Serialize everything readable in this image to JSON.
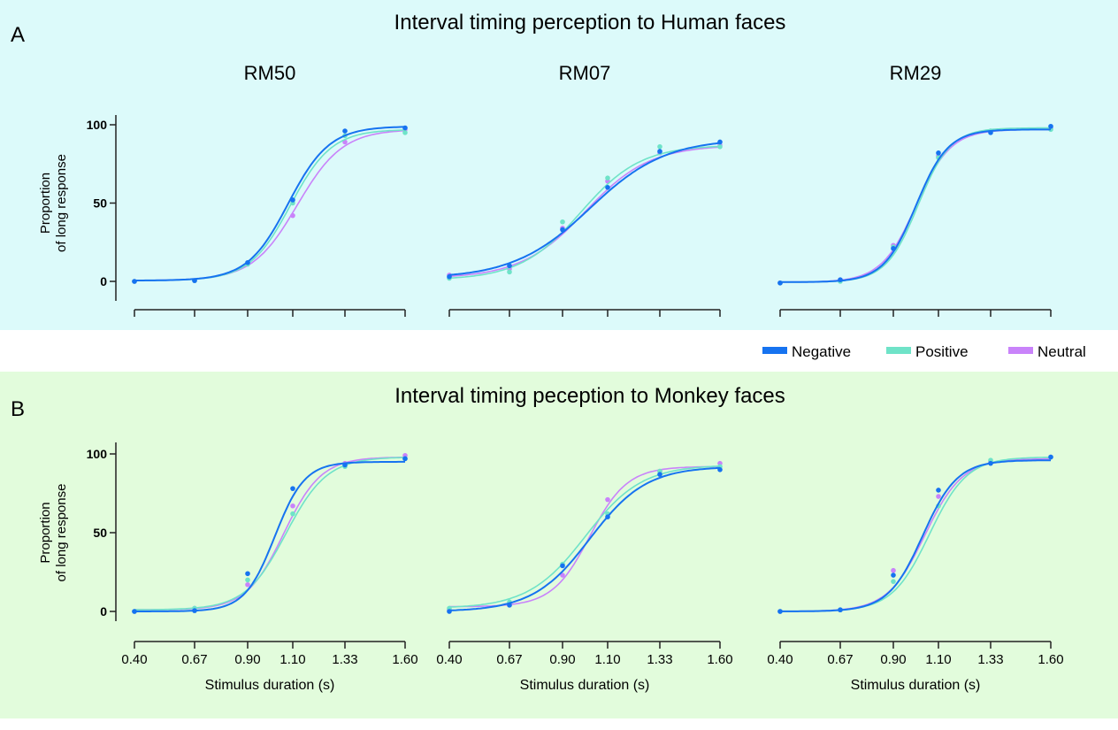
{
  "colors": {
    "Negative": "#1673f0",
    "Positive": "#6fe3c8",
    "Neutral": "#c983fa",
    "bg_top": "#dcfafa",
    "bg_bottom": "#e2fcdc"
  },
  "legend": [
    "Negative",
    "Positive",
    "Neutral"
  ],
  "chart_data": [
    {
      "type": "line",
      "row": "A",
      "title": "Interval timing perception to Human faces",
      "panel": "RM50",
      "ylabel": [
        "Proportion",
        "of long response"
      ],
      "xlabel": "",
      "x": [
        0.4,
        0.67,
        0.9,
        1.1,
        1.33,
        1.6
      ],
      "ylim": [
        0,
        100
      ],
      "yticks": [
        "0",
        "50",
        "100"
      ],
      "series": [
        {
          "name": "Negative",
          "values": [
            0,
            0.5,
            12,
            52,
            96,
            98
          ],
          "fit": [
            0.5,
            99,
            1.08,
            11
          ]
        },
        {
          "name": "Positive",
          "values": [
            0,
            0.5,
            11,
            50,
            93,
            95
          ],
          "fit": [
            0.5,
            97,
            1.09,
            11
          ]
        },
        {
          "name": "Neutral",
          "values": [
            0,
            0.5,
            11,
            42,
            89,
            97
          ],
          "fit": [
            0.5,
            97,
            1.12,
            10
          ]
        }
      ]
    },
    {
      "type": "line",
      "row": "A",
      "panel": "RM07",
      "x": [
        0.4,
        0.67,
        0.9,
        1.1,
        1.33,
        1.6
      ],
      "ylim": [
        0,
        100
      ],
      "series": [
        {
          "name": "Negative",
          "values": [
            3,
            10,
            33,
            60,
            83,
            89
          ],
          "fit": [
            2,
            91,
            1.02,
            6
          ]
        },
        {
          "name": "Positive",
          "values": [
            2,
            6,
            38,
            66,
            86,
            86
          ],
          "fit": [
            1,
            87,
            0.98,
            7.5
          ]
        },
        {
          "name": "Neutral",
          "values": [
            4,
            8,
            34,
            64,
            82,
            87
          ],
          "fit": [
            2,
            87,
            1.0,
            7
          ]
        }
      ]
    },
    {
      "type": "line",
      "row": "A",
      "panel": "RM29",
      "x": [
        0.4,
        0.67,
        0.9,
        1.1,
        1.33,
        1.6
      ],
      "ylim": [
        0,
        100
      ],
      "series": [
        {
          "name": "Negative",
          "values": [
            -1,
            1,
            21,
            82,
            95,
            99
          ],
          "fit": [
            -0.5,
            97,
            1.0,
            14
          ]
        },
        {
          "name": "Positive",
          "values": [
            -1,
            0,
            22,
            79,
            96,
            97
          ],
          "fit": [
            -0.5,
            98,
            1.01,
            14
          ]
        },
        {
          "name": "Neutral",
          "values": [
            -1,
            1,
            23,
            80,
            96,
            98
          ],
          "fit": [
            -0.5,
            97,
            1.0,
            13
          ]
        }
      ]
    },
    {
      "type": "line",
      "row": "B",
      "title": "Interval timing peception to Monkey faces",
      "panel": "",
      "ylabel": [
        "Proportion",
        "of long response"
      ],
      "xlabel": "Stimulus duration (s)",
      "xticks": [
        "0.40",
        "0.67",
        "0.90",
        "1.10",
        "1.33",
        "1.60"
      ],
      "x": [
        0.4,
        0.67,
        0.9,
        1.1,
        1.33,
        1.6
      ],
      "ylim": [
        0,
        100
      ],
      "yticks": [
        "0",
        "50",
        "100"
      ],
      "series": [
        {
          "name": "Negative",
          "values": [
            0,
            0.5,
            24,
            78,
            93,
            97
          ],
          "fit": [
            0,
            95,
            1.02,
            15
          ]
        },
        {
          "name": "Positive",
          "values": [
            0,
            2,
            20,
            62,
            92,
            97
          ],
          "fit": [
            1,
            98,
            1.07,
            11
          ]
        },
        {
          "name": "Neutral",
          "values": [
            0,
            2,
            17,
            67,
            94,
            99
          ],
          "fit": [
            1,
            98,
            1.06,
            12
          ]
        }
      ]
    },
    {
      "type": "line",
      "row": "B",
      "panel": "",
      "xlabel": "Stimulus duration (s)",
      "xticks": [
        "0.40",
        "0.67",
        "0.90",
        "1.10",
        "1.33",
        "1.60"
      ],
      "x": [
        0.4,
        0.67,
        0.9,
        1.1,
        1.33,
        1.6
      ],
      "ylim": [
        0,
        100
      ],
      "series": [
        {
          "name": "Negative",
          "values": [
            0,
            4,
            29,
            60,
            87,
            90
          ],
          "fit": [
            0,
            92,
            1.02,
            8
          ]
        },
        {
          "name": "Positive",
          "values": [
            2,
            6,
            30,
            62,
            89,
            92
          ],
          "fit": [
            2,
            93,
            1.0,
            8
          ]
        },
        {
          "name": "Neutral",
          "values": [
            1,
            4,
            23,
            71,
            89,
            94
          ],
          "fit": [
            3,
            92,
            1.02,
            12
          ]
        }
      ]
    },
    {
      "type": "line",
      "row": "B",
      "panel": "",
      "xlabel": "Stimulus duration (s)",
      "xticks": [
        "0.40",
        "0.67",
        "0.90",
        "1.10",
        "1.33",
        "1.60"
      ],
      "x": [
        0.4,
        0.67,
        0.9,
        1.1,
        1.33,
        1.6
      ],
      "ylim": [
        0,
        100
      ],
      "series": [
        {
          "name": "Negative",
          "values": [
            0,
            1,
            23,
            77,
            94,
            98
          ],
          "fit": [
            0,
            96,
            1.03,
            13
          ]
        },
        {
          "name": "Positive",
          "values": [
            0,
            1,
            19,
            67,
            96,
            98
          ],
          "fit": [
            0,
            98,
            1.06,
            12
          ]
        },
        {
          "name": "Neutral",
          "values": [
            0,
            1,
            26,
            73,
            95,
            98
          ],
          "fit": [
            0,
            97,
            1.04,
            12
          ]
        }
      ]
    }
  ]
}
